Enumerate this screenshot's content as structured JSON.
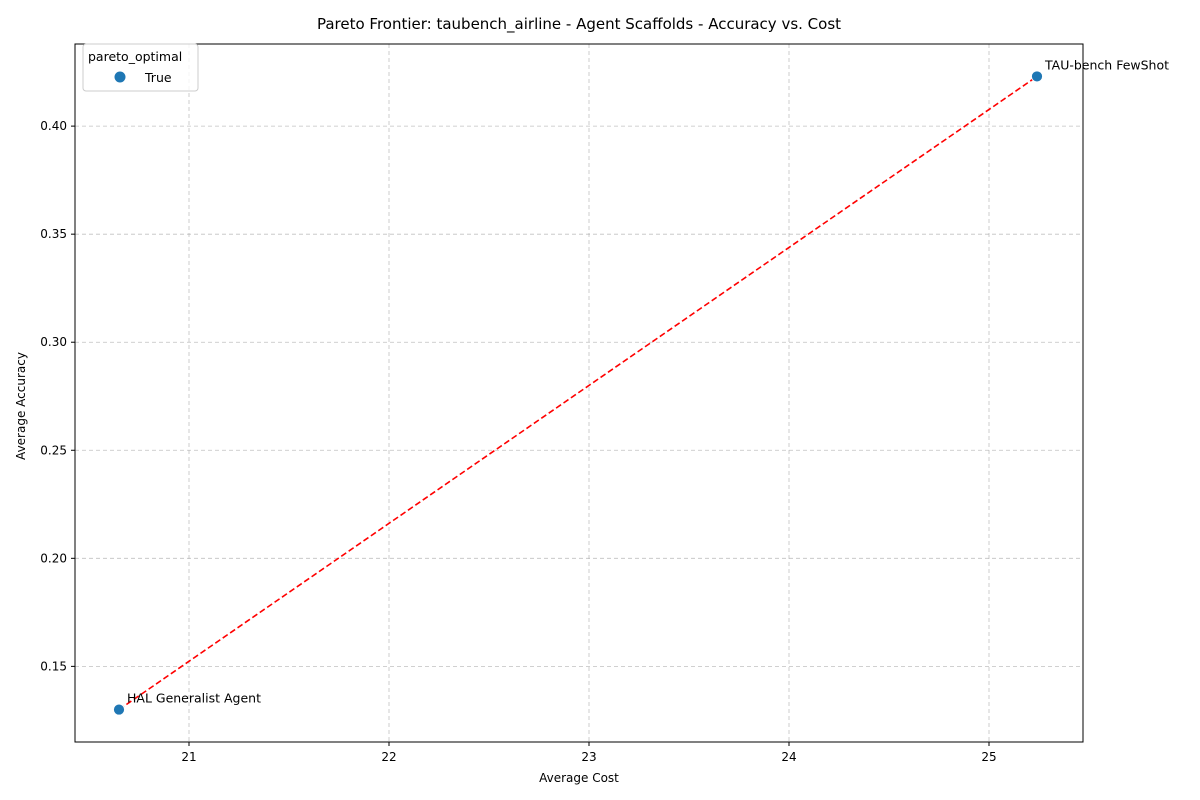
{
  "chart_data": {
    "type": "scatter",
    "title": "Pareto Frontier: taubench_airline - Agent Scaffolds - Accuracy vs. Cost",
    "xlabel": "Average Cost",
    "ylabel": "Average Accuracy",
    "xlim": [
      20.43,
      25.47
    ],
    "ylim": [
      0.115,
      0.438
    ],
    "xticks": [
      21,
      22,
      23,
      24,
      25
    ],
    "yticks": [
      0.15,
      0.2,
      0.25,
      0.3,
      0.35,
      0.4
    ],
    "grid": true,
    "legend": {
      "title": "pareto_optimal",
      "placement": "top-left",
      "entries": [
        "True"
      ]
    },
    "series": [
      {
        "name": "True",
        "color": "#1f77b4",
        "points": [
          {
            "x": 20.65,
            "y": 0.13,
            "label": "HAL Generalist Agent"
          },
          {
            "x": 25.24,
            "y": 0.423,
            "label": "TAU-bench FewShot"
          }
        ]
      }
    ],
    "frontier": {
      "color": "#ff0000",
      "style": "dashed",
      "points": [
        [
          20.65,
          0.13
        ],
        [
          25.24,
          0.423
        ]
      ]
    }
  }
}
